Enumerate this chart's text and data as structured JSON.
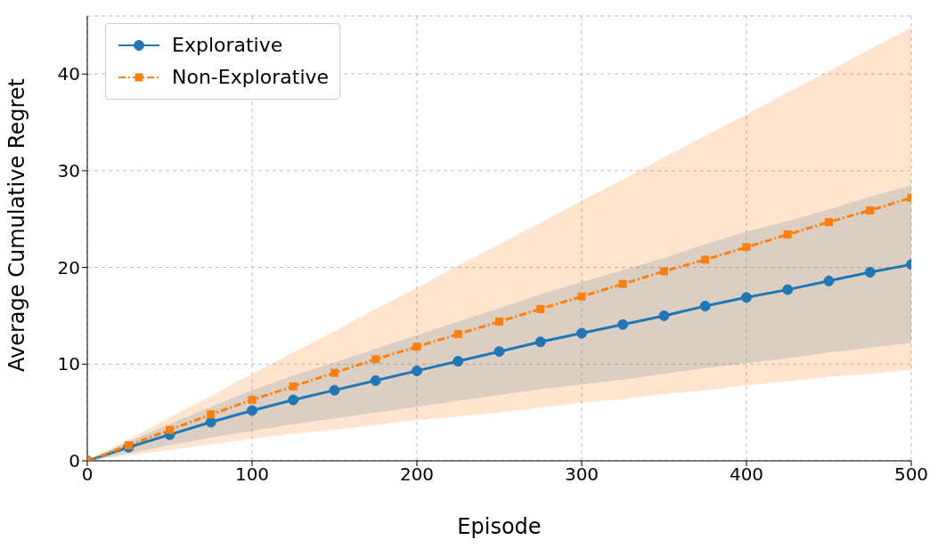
{
  "chart_data": {
    "type": "line",
    "xlabel": "Episode",
    "ylabel": "Average Cumulative Regret",
    "x": [
      0,
      25,
      50,
      75,
      100,
      125,
      150,
      175,
      200,
      225,
      250,
      275,
      300,
      325,
      350,
      375,
      400,
      425,
      450,
      475,
      500
    ],
    "series": [
      {
        "name": "Explorative",
        "color": "#1f77b4",
        "marker": "circle",
        "line_style": "solid",
        "values": [
          0,
          1.4,
          2.7,
          4.0,
          5.2,
          6.3,
          7.3,
          8.3,
          9.3,
          10.3,
          11.3,
          12.3,
          13.2,
          14.1,
          15.0,
          16.0,
          16.9,
          17.7,
          18.6,
          19.5,
          20.3
        ],
        "lower": [
          0,
          0.8,
          1.6,
          2.4,
          3.1,
          3.8,
          4.4,
          5.0,
          5.6,
          6.2,
          6.8,
          7.4,
          7.9,
          8.4,
          9.0,
          9.6,
          10.1,
          10.6,
          11.2,
          11.7,
          12.2
        ],
        "upper": [
          0,
          2.0,
          3.8,
          5.6,
          7.3,
          8.8,
          10.2,
          11.6,
          13.0,
          14.4,
          15.8,
          17.2,
          18.5,
          19.7,
          21.0,
          22.4,
          23.7,
          24.8,
          26.0,
          27.3,
          28.5
        ]
      },
      {
        "name": "Non-Explorative",
        "color": "#ff7f0e",
        "marker": "square",
        "line_style": "dashed",
        "values": [
          0,
          1.6,
          3.2,
          4.8,
          6.3,
          7.7,
          9.1,
          10.5,
          11.8,
          13.1,
          14.4,
          15.7,
          17.0,
          18.3,
          19.6,
          20.8,
          22.1,
          23.4,
          24.7,
          25.9,
          27.2
        ],
        "lower": [
          0,
          0.6,
          1.1,
          1.7,
          2.3,
          2.8,
          3.2,
          3.7,
          4.2,
          4.6,
          5.0,
          5.5,
          6.0,
          6.4,
          6.9,
          7.3,
          7.8,
          8.2,
          8.7,
          9.0,
          9.4
        ],
        "upper": [
          0,
          2.2,
          4.5,
          6.7,
          9.0,
          11.2,
          13.4,
          15.7,
          17.9,
          20.2,
          22.4,
          24.6,
          26.9,
          29.1,
          31.4,
          33.6,
          35.8,
          38.1,
          40.3,
          42.6,
          44.8
        ]
      }
    ],
    "xlim": [
      0,
      500
    ],
    "xticks": [
      0,
      100,
      200,
      300,
      400,
      500
    ],
    "ylim": [
      0,
      46
    ],
    "yticks": [
      0,
      10,
      20,
      30,
      40
    ],
    "grid": true,
    "legend": "top left"
  }
}
